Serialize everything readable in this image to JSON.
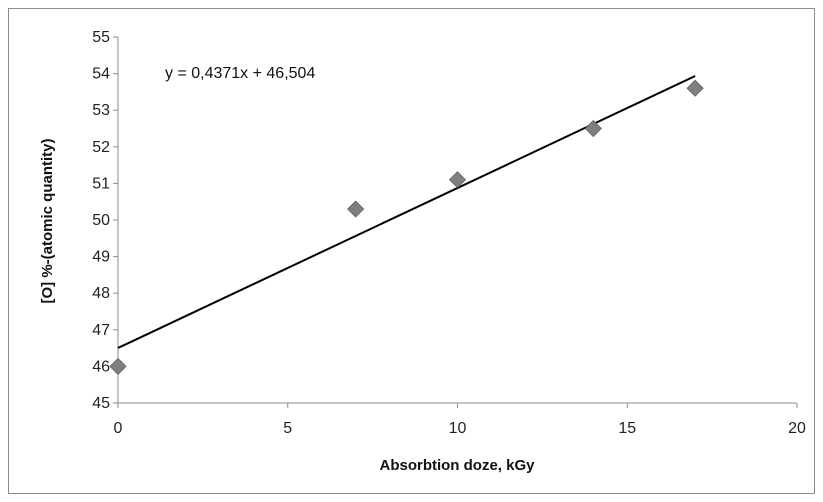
{
  "chart_data": {
    "type": "scatter",
    "title": "",
    "xlabel": "Absorbtion doze, kGy",
    "ylabel": "[O] %-(atomic quantity)",
    "xlim": [
      0,
      20
    ],
    "ylim": [
      45,
      55
    ],
    "x_ticks": [
      0,
      5,
      10,
      15,
      20
    ],
    "y_ticks": [
      45,
      46,
      47,
      48,
      49,
      50,
      51,
      52,
      53,
      54,
      55
    ],
    "grid": false,
    "legend": "none",
    "series": [
      {
        "x": [
          0,
          7,
          10,
          14,
          17
        ],
        "y": [
          46.0,
          50.3,
          51.1,
          52.5,
          53.6
        ],
        "marker": "diamond",
        "color": "#7f7f7f"
      }
    ],
    "trendline": {
      "slope": 0.4371,
      "intercept": 46.504,
      "x_range": [
        0,
        17
      ],
      "color": "#000000",
      "equation_label": "y = 0,4371x + 46,504"
    }
  }
}
